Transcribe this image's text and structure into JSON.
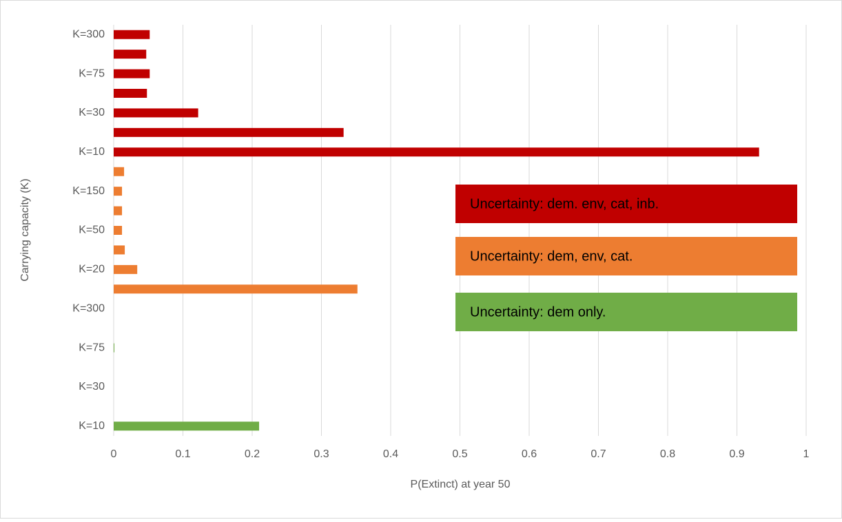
{
  "chart_data": {
    "type": "bar",
    "orientation": "horizontal",
    "x_label": "P(Extinct) at year 50",
    "y_label": "Carrying capacity (K)",
    "categories": [
      "K=10",
      null,
      "K=30",
      null,
      "K=75",
      null,
      "K=300",
      null,
      "K=20",
      null,
      "K=50",
      null,
      "K=150",
      null,
      "K=10",
      null,
      "K=30",
      null,
      "K=75",
      null,
      "K=300"
    ],
    "series": [
      {
        "name": "Uncertainty: dem. env, cat, inb.",
        "color": "#c00000",
        "values": [
          null,
          null,
          null,
          null,
          null,
          null,
          null,
          null,
          null,
          null,
          null,
          null,
          null,
          null,
          0.932,
          0.332,
          0.122,
          0.048,
          0.052,
          0.047,
          0.052
        ]
      },
      {
        "name": "Uncertainty: dem, env, cat.",
        "color": "#ed7d31",
        "values": [
          null,
          null,
          null,
          null,
          null,
          null,
          null,
          0.352,
          0.034,
          0.016,
          0.012,
          0.012,
          0.012,
          0.015,
          null,
          null,
          null,
          null,
          null,
          null,
          null
        ]
      },
      {
        "name": "Uncertainty: dem only.",
        "color": "#70ad47",
        "values": [
          0.21,
          0,
          0,
          0,
          0.001,
          0,
          0,
          null,
          null,
          null,
          null,
          null,
          null,
          null,
          null,
          null,
          null,
          null,
          null,
          null,
          null
        ]
      }
    ],
    "xlim": [
      0,
      1
    ],
    "xticks": [
      0,
      0.1,
      0.2,
      0.3,
      0.4,
      0.5,
      0.6,
      0.7,
      0.8,
      0.9,
      1
    ],
    "grid": true
  }
}
